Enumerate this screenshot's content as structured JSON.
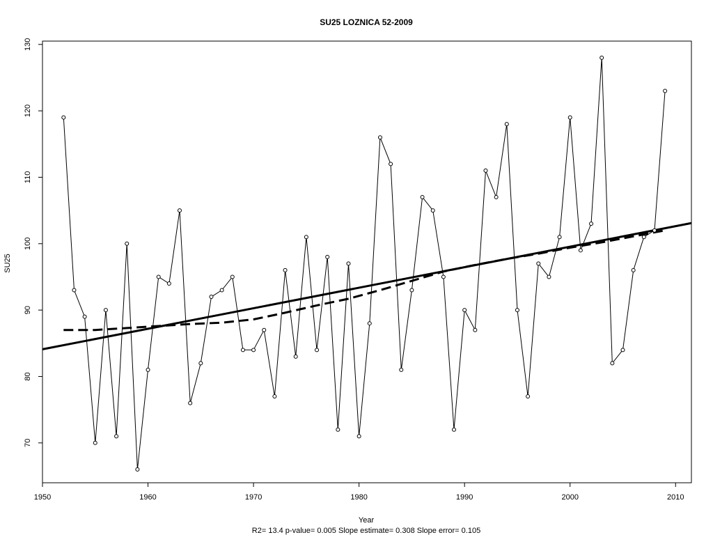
{
  "chart_data": {
    "type": "line",
    "title": "SU25   LOZNICA 52-2009",
    "subtitle": "R2= 13.4  p-value= 0.005  Slope estimate= 0.308  Slope error= 0.105",
    "xlabel": "Year",
    "ylabel": "SU25",
    "xlim": [
      1950,
      2011.5
    ],
    "ylim": [
      64,
      130.5
    ],
    "xticks": [
      1950,
      1960,
      1970,
      1980,
      1990,
      2000,
      2010
    ],
    "yticks": [
      70,
      80,
      90,
      100,
      110,
      120,
      130
    ],
    "grid": false,
    "legend": "none",
    "series": [
      {
        "style": "line-with-open-circles",
        "x": [
          1952,
          1953,
          1954,
          1955,
          1956,
          1957,
          1958,
          1959,
          1960,
          1961,
          1962,
          1963,
          1964,
          1965,
          1966,
          1967,
          1968,
          1969,
          1970,
          1971,
          1972,
          1973,
          1974,
          1975,
          1976,
          1977,
          1978,
          1979,
          1980,
          1981,
          1982,
          1983,
          1984,
          1985,
          1986,
          1987,
          1988,
          1989,
          1990,
          1991,
          1992,
          1993,
          1994,
          1995,
          1996,
          1997,
          1998,
          1999,
          2000,
          2001,
          2002,
          2003,
          2004,
          2005,
          2006,
          2007,
          2008,
          2009
        ],
        "values": [
          119,
          93,
          89,
          70,
          90,
          71,
          100,
          66,
          81,
          95,
          94,
          105,
          76,
          82,
          92,
          93,
          95,
          84,
          84,
          87,
          77,
          96,
          83,
          101,
          84,
          98,
          72,
          97,
          71,
          88,
          116,
          112,
          81,
          93,
          107,
          105,
          95,
          72,
          90,
          87,
          111,
          107,
          118,
          90,
          77,
          97,
          95,
          101,
          119,
          99,
          103,
          128,
          82,
          84,
          96,
          101,
          102,
          123
        ]
      }
    ],
    "trend_line": {
      "style": "solid-thick",
      "x": [
        1950,
        2011.5
      ],
      "values": [
        84.1,
        103.1
      ]
    },
    "smooth_line": {
      "style": "dashed-thick",
      "x": [
        1952,
        1955,
        1958,
        1961,
        1964,
        1967,
        1970,
        1973,
        1976,
        1979,
        1982,
        1985,
        1988,
        1991,
        1994,
        1997,
        2000,
        2003,
        2006,
        2009
      ],
      "values": [
        87.0,
        87.0,
        87.3,
        87.6,
        87.9,
        88.1,
        88.6,
        89.6,
        90.7,
        91.7,
        93.0,
        94.4,
        95.8,
        96.8,
        97.7,
        98.5,
        99.4,
        100.2,
        101.1,
        102.0
      ]
    }
  }
}
